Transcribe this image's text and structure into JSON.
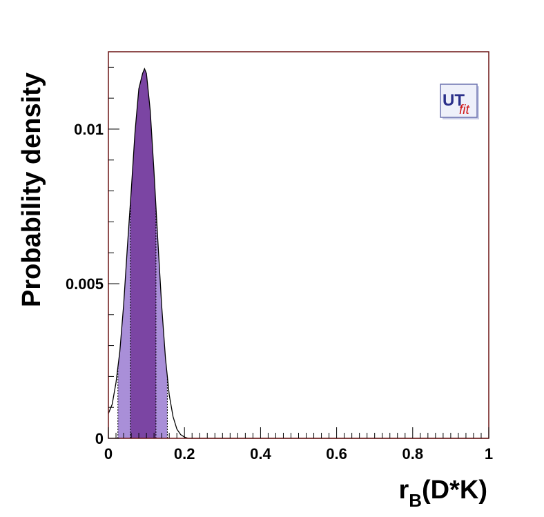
{
  "chart_data": {
    "type": "area",
    "title": "",
    "xlabel": "r_B(D*K)",
    "xlabel_main": "r",
    "xlabel_sub": "B",
    "xlabel_rest": "(D*K)",
    "ylabel": "Probability density",
    "xlim": [
      0,
      1
    ],
    "ylim": [
      0,
      0.0125
    ],
    "x_ticks": [
      0,
      0.2,
      0.4,
      0.6,
      0.8,
      1
    ],
    "x_tick_labels": [
      "0",
      "0.2",
      "0.4",
      "0.6",
      "0.8",
      "1"
    ],
    "y_ticks": [
      0,
      0.005,
      0.01
    ],
    "y_tick_labels": [
      "0",
      "0.005",
      "0.01"
    ],
    "curve": {
      "x": [
        0,
        0.01,
        0.02,
        0.03,
        0.04,
        0.05,
        0.06,
        0.07,
        0.08,
        0.09,
        0.095,
        0.1,
        0.11,
        0.12,
        0.13,
        0.14,
        0.15,
        0.16,
        0.17,
        0.18,
        0.19,
        0.2,
        0.21,
        0.22,
        0.25,
        0.3,
        0.4,
        0.6,
        0.8,
        1.0
      ],
      "y": [
        0.0008,
        0.0011,
        0.0018,
        0.0028,
        0.0043,
        0.0062,
        0.008,
        0.0099,
        0.0113,
        0.0118,
        0.01195,
        0.0118,
        0.0106,
        0.0086,
        0.0064,
        0.0043,
        0.0026,
        0.0014,
        0.0007,
        0.0003,
        0.00012,
        4e-05,
        0.0,
        0.0,
        0.0,
        0.0,
        0.0,
        0.0,
        0.0,
        0.0
      ]
    },
    "intervals": {
      "outer": [
        0.025,
        0.155
      ],
      "inner": [
        0.058,
        0.125
      ]
    },
    "colors": {
      "outer_fill": "#a98fd8",
      "inner_fill": "#7b45a3",
      "curve": "#000000",
      "frame": "#6b1414"
    }
  },
  "logo": {
    "text_main": "UT",
    "text_sub": "fit",
    "main_color": "#2a2f8a",
    "sub_color": "#d01818"
  }
}
